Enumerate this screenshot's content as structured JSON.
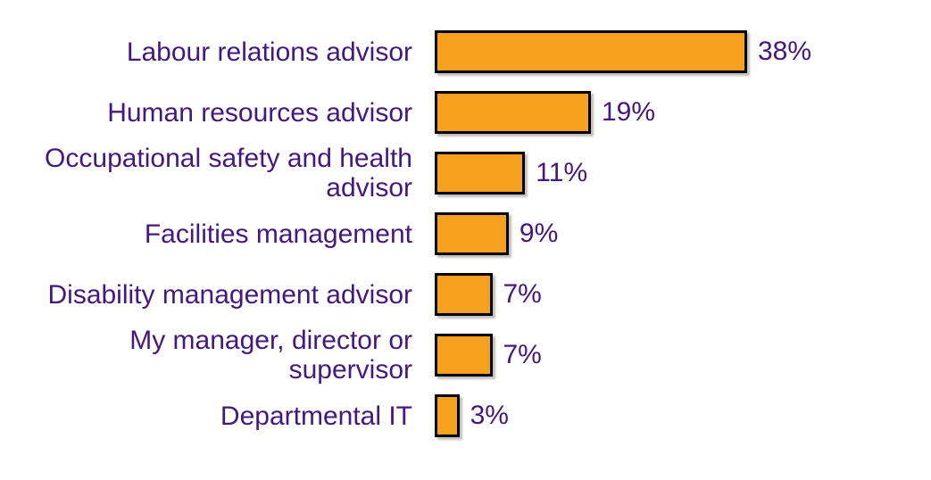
{
  "chart_data": {
    "type": "bar",
    "orientation": "horizontal",
    "title": "",
    "xlabel": "",
    "ylabel": "",
    "categories": [
      "Labour relations advisor",
      "Human resources advisor",
      "Occupational safety and health advisor",
      "Facilities management",
      "Disability management advisor",
      "My manager, director or supervisor",
      "Departmental IT"
    ],
    "values": [
      38,
      19,
      11,
      9,
      7,
      7,
      3
    ],
    "value_labels": [
      "38%",
      "19%",
      "11%",
      "9%",
      "7%",
      "7%",
      "3%"
    ],
    "xlim": [
      0,
      40
    ],
    "grid": false,
    "legend": false,
    "bar_color": "#F5A01E",
    "bar_border_color": "#000000",
    "text_color": "#44187C",
    "background_color": "#FFFFFF"
  }
}
